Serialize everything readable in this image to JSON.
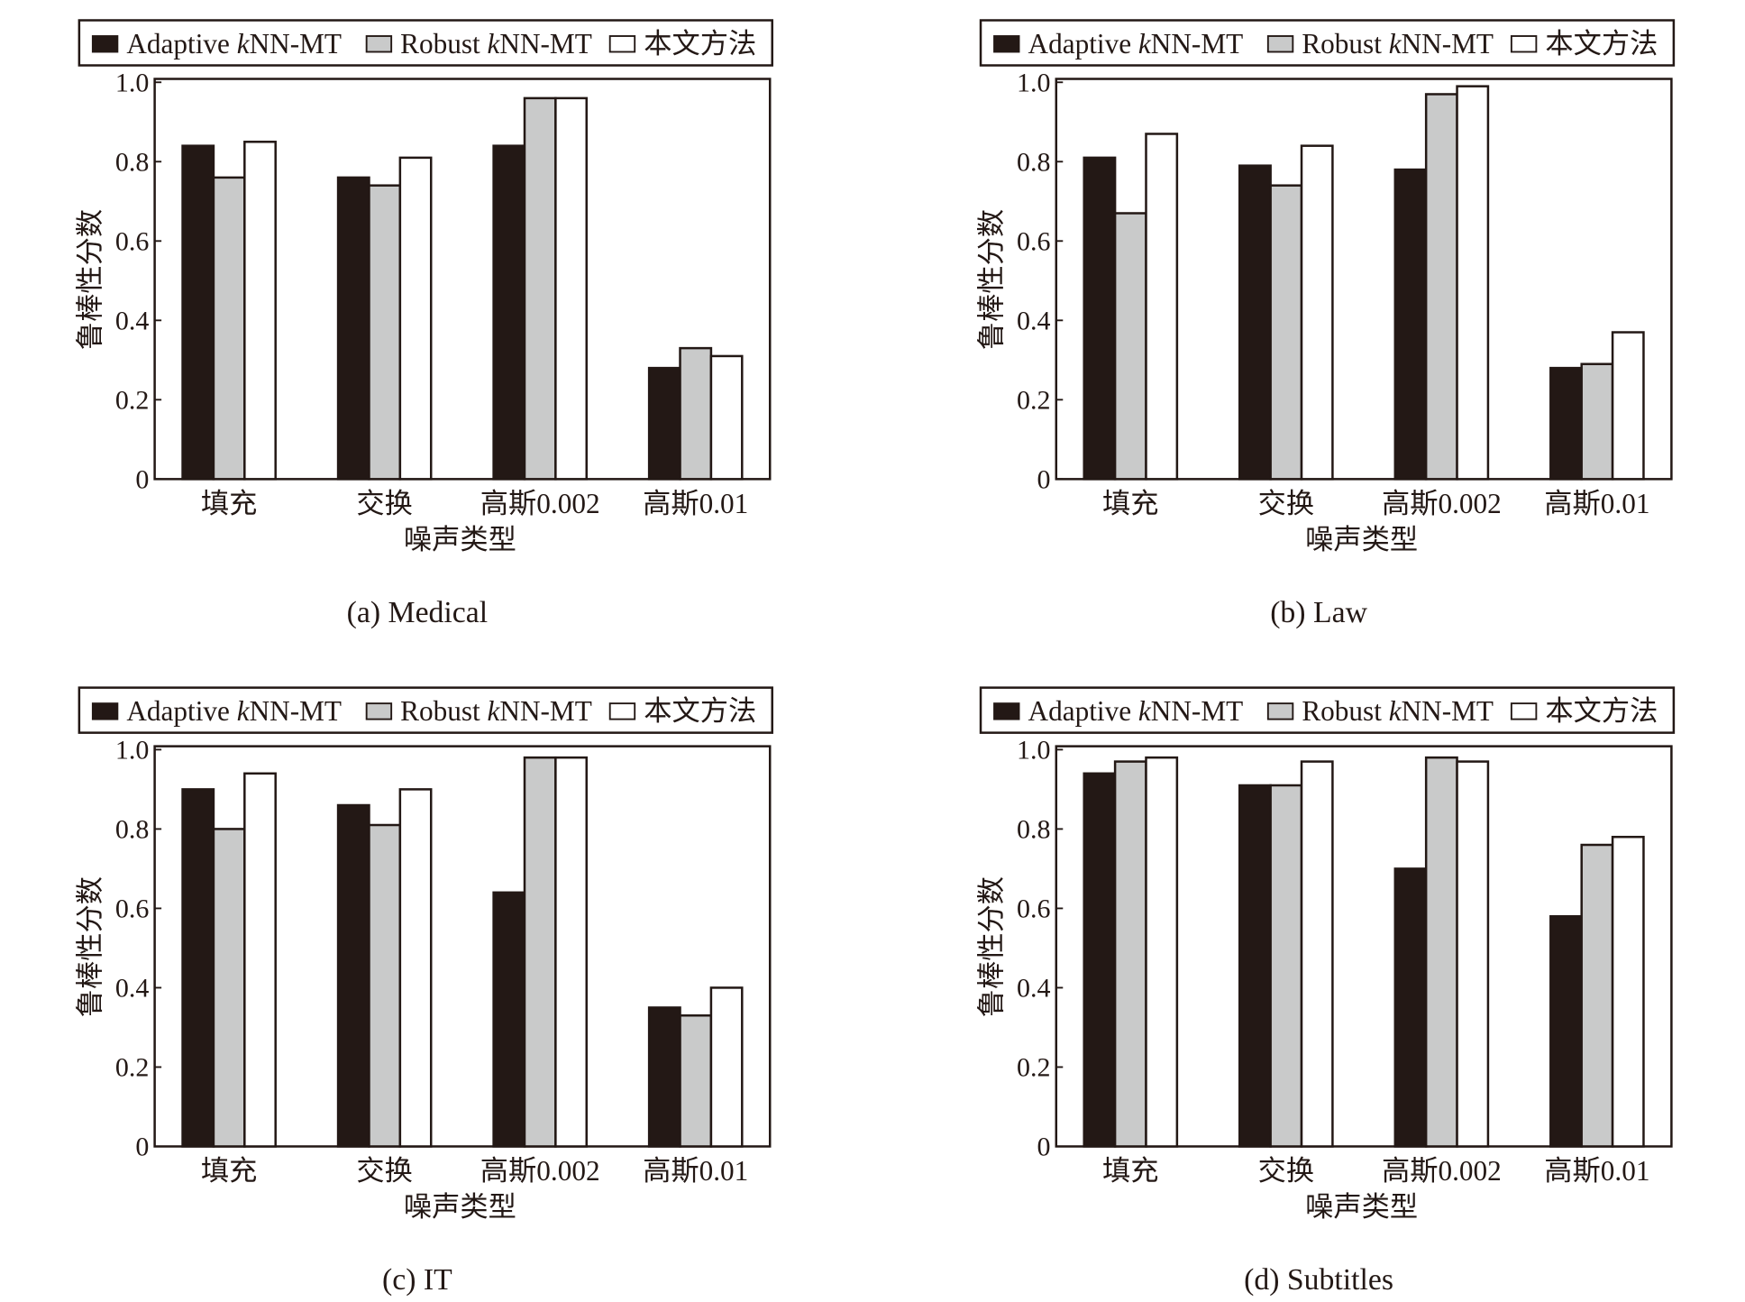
{
  "colors": {
    "series": [
      "#231815",
      "#c9caca",
      "#ffffff"
    ],
    "outline": "#231815"
  },
  "chart_data": [
    {
      "type": "bar",
      "caption": "(a) Medical",
      "categories": [
        "填充",
        "交换",
        "高斯0.002",
        "高斯0.01"
      ],
      "xlabel": "噪声类型",
      "ylabel": "鲁棒性分数",
      "ylim": [
        0,
        1.0
      ],
      "yticks": [
        "0",
        "0.2",
        "0.4",
        "0.6",
        "0.8",
        "1.0"
      ],
      "legend_position": "top",
      "grid": false,
      "series": [
        {
          "name": "Adaptive kNN-MT",
          "values": [
            0.84,
            0.76,
            0.84,
            0.28
          ]
        },
        {
          "name": "Robust kNN-MT",
          "values": [
            0.76,
            0.74,
            0.96,
            0.33
          ]
        },
        {
          "name": "本文方法",
          "values": [
            0.85,
            0.81,
            0.96,
            0.31
          ]
        }
      ]
    },
    {
      "type": "bar",
      "caption": "(b) Law",
      "categories": [
        "填充",
        "交换",
        "高斯0.002",
        "高斯0.01"
      ],
      "xlabel": "噪声类型",
      "ylabel": "鲁棒性分数",
      "ylim": [
        0,
        1.0
      ],
      "yticks": [
        "0",
        "0.2",
        "0.4",
        "0.6",
        "0.8",
        "1.0"
      ],
      "legend_position": "top",
      "grid": false,
      "series": [
        {
          "name": "Adaptive kNN-MT",
          "values": [
            0.81,
            0.79,
            0.78,
            0.28
          ]
        },
        {
          "name": "Robust kNN-MT",
          "values": [
            0.67,
            0.74,
            0.97,
            0.29
          ]
        },
        {
          "name": "本文方法",
          "values": [
            0.87,
            0.84,
            0.99,
            0.37
          ]
        }
      ]
    },
    {
      "type": "bar",
      "caption": "(c) IT",
      "categories": [
        "填充",
        "交换",
        "高斯0.002",
        "高斯0.01"
      ],
      "xlabel": "噪声类型",
      "ylabel": "鲁棒性分数",
      "ylim": [
        0,
        1.0
      ],
      "yticks": [
        "0",
        "0.2",
        "0.4",
        "0.6",
        "0.8",
        "1.0"
      ],
      "legend_position": "top",
      "grid": false,
      "series": [
        {
          "name": "Adaptive kNN-MT",
          "values": [
            0.9,
            0.86,
            0.64,
            0.35
          ]
        },
        {
          "name": "Robust kNN-MT",
          "values": [
            0.8,
            0.81,
            0.98,
            0.33
          ]
        },
        {
          "name": "本文方法",
          "values": [
            0.94,
            0.9,
            0.98,
            0.4
          ]
        }
      ]
    },
    {
      "type": "bar",
      "caption": "(d) Subtitles",
      "categories": [
        "填充",
        "交换",
        "高斯0.002",
        "高斯0.01"
      ],
      "xlabel": "噪声类型",
      "ylabel": "鲁棒性分数",
      "ylim": [
        0,
        1.0
      ],
      "yticks": [
        "0",
        "0.2",
        "0.4",
        "0.6",
        "0.8",
        "1.0"
      ],
      "legend_position": "top",
      "grid": false,
      "series": [
        {
          "name": "Adaptive kNN-MT",
          "values": [
            0.94,
            0.91,
            0.7,
            0.58
          ]
        },
        {
          "name": "Robust kNN-MT",
          "values": [
            0.97,
            0.91,
            0.98,
            0.76
          ]
        },
        {
          "name": "本文方法",
          "values": [
            0.98,
            0.97,
            0.97,
            0.78
          ]
        }
      ]
    }
  ]
}
